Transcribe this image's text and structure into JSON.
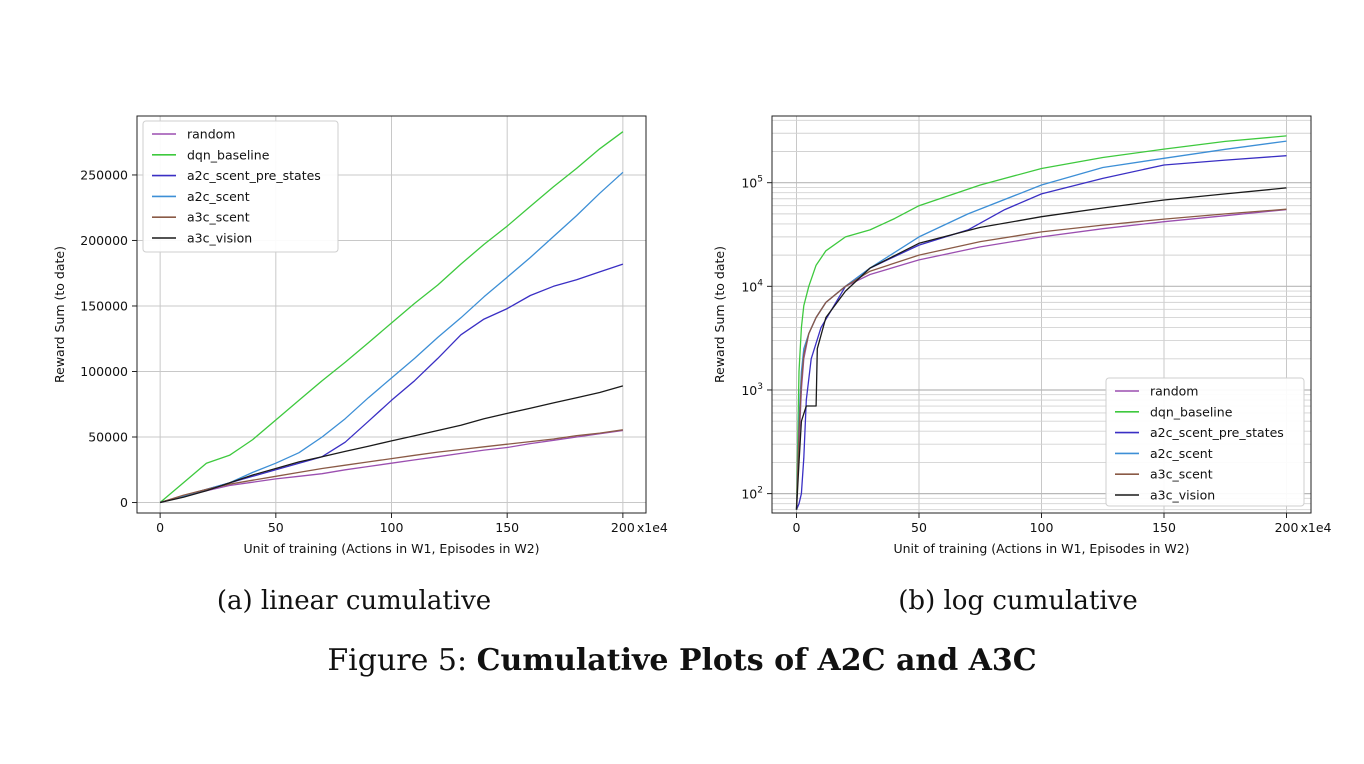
{
  "figure": {
    "label": "Figure 5:",
    "title": "Cumulative Plots of A2C and A3C"
  },
  "chart_data": [
    {
      "type": "line",
      "subcaption": "(a) linear cumulative",
      "xlabel": "Unit of training (Actions in W1, Episodes in W2)",
      "ylabel": "Reward Sum (to date)",
      "x_ticks": [
        0,
        50,
        100,
        150,
        200
      ],
      "x_offset_label": "x1e4",
      "xlim": [
        -10,
        210
      ],
      "ylim": [
        -8000,
        295000
      ],
      "y_ticks": [
        0,
        50000,
        100000,
        150000,
        200000,
        250000
      ],
      "y_tick_labels": [
        "0",
        "50000",
        "100000",
        "150000",
        "200000",
        "250000"
      ],
      "y_scale": "linear",
      "grid": true,
      "legend": "top-left",
      "series": [
        {
          "name": "random",
          "color": "#9b4fb0",
          "x": [
            0,
            10,
            20,
            30,
            40,
            50,
            60,
            70,
            80,
            90,
            100,
            110,
            120,
            130,
            140,
            150,
            160,
            170,
            180,
            190,
            200
          ],
          "y": [
            0,
            5000,
            9000,
            13000,
            15500,
            18000,
            20000,
            22000,
            25000,
            27500,
            30000,
            32500,
            35000,
            37500,
            40000,
            42000,
            45000,
            47500,
            50000,
            52500,
            55000
          ]
        },
        {
          "name": "dqn_baseline",
          "color": "#3ec93e",
          "x": [
            0,
            10,
            20,
            30,
            35,
            40,
            50,
            60,
            70,
            80,
            90,
            100,
            110,
            120,
            130,
            140,
            150,
            160,
            170,
            180,
            190,
            200
          ],
          "y": [
            0,
            15000,
            30000,
            36000,
            42000,
            48000,
            63000,
            78000,
            93000,
            107000,
            122000,
            137000,
            152000,
            166000,
            182000,
            197000,
            211000,
            226000,
            241000,
            255000,
            270000,
            283000
          ]
        },
        {
          "name": "a2c_scent_pre_states",
          "color": "#3a2fc4",
          "x": [
            0,
            10,
            20,
            30,
            40,
            50,
            60,
            70,
            80,
            90,
            100,
            110,
            120,
            130,
            140,
            150,
            160,
            170,
            180,
            190,
            200
          ],
          "y": [
            0,
            5000,
            10000,
            15000,
            20000,
            25000,
            30000,
            35000,
            46000,
            62000,
            78000,
            93000,
            110000,
            128000,
            140000,
            148000,
            158000,
            165000,
            170000,
            176000,
            182000
          ]
        },
        {
          "name": "a2c_scent",
          "color": "#3d8fd6",
          "x": [
            0,
            10,
            20,
            30,
            40,
            50,
            60,
            70,
            80,
            90,
            100,
            110,
            120,
            130,
            140,
            150,
            160,
            170,
            180,
            190,
            200
          ],
          "y": [
            0,
            5000,
            10000,
            15000,
            23000,
            30000,
            38000,
            50000,
            64000,
            80000,
            95000,
            110000,
            126000,
            141000,
            157000,
            172000,
            187000,
            203000,
            219000,
            236000,
            252000
          ]
        },
        {
          "name": "a3c_scent",
          "color": "#8a5a46",
          "x": [
            0,
            10,
            20,
            30,
            40,
            50,
            60,
            70,
            80,
            90,
            100,
            110,
            120,
            130,
            140,
            150,
            160,
            170,
            180,
            190,
            200
          ],
          "y": [
            0,
            5500,
            10000,
            14000,
            17000,
            20000,
            23000,
            26000,
            28500,
            31000,
            33500,
            36000,
            38500,
            40500,
            42500,
            44500,
            46500,
            48500,
            51000,
            53000,
            55500
          ]
        },
        {
          "name": "a3c_vision",
          "color": "#1a1a1a",
          "x": [
            0,
            10,
            20,
            30,
            40,
            50,
            60,
            70,
            80,
            90,
            100,
            110,
            120,
            130,
            140,
            150,
            160,
            170,
            180,
            190,
            200
          ],
          "y": [
            0,
            4000,
            9000,
            15000,
            21000,
            26000,
            31000,
            35000,
            39000,
            43000,
            47000,
            51000,
            55000,
            59000,
            64000,
            68000,
            72000,
            76000,
            80000,
            84000,
            89000
          ]
        }
      ]
    },
    {
      "type": "line",
      "subcaption": "(b) log cumulative",
      "xlabel": "Unit of training (Actions in W1, Episodes in W2)",
      "ylabel": "Reward Sum (to date)",
      "x_ticks": [
        0,
        50,
        100,
        150,
        200
      ],
      "x_offset_label": "x1e4",
      "xlim": [
        -10,
        210
      ],
      "ylim": [
        65,
        440000
      ],
      "y_ticks": [
        100,
        1000,
        10000,
        100000
      ],
      "y_tick_base": "10",
      "y_tick_exponents": [
        "2",
        "3",
        "4",
        "5"
      ],
      "y_scale": "log",
      "grid": true,
      "legend": "bottom-right",
      "series": [
        {
          "name": "random",
          "color": "#9b4fb0",
          "x": [
            0,
            1,
            2,
            3,
            5,
            8,
            12,
            20,
            30,
            50,
            75,
            100,
            125,
            150,
            175,
            200
          ],
          "y": [
            70,
            300,
            1000,
            2000,
            3500,
            5000,
            7000,
            10000,
            13000,
            18000,
            24000,
            30000,
            36000,
            42000,
            48000,
            55000
          ]
        },
        {
          "name": "dqn_baseline",
          "color": "#3ec93e",
          "x": [
            0,
            1,
            2,
            3,
            5,
            8,
            12,
            20,
            30,
            40,
            50,
            75,
            100,
            125,
            150,
            175,
            200
          ],
          "y": [
            70,
            1500,
            4000,
            6500,
            10000,
            16000,
            22000,
            30000,
            35000,
            45000,
            60000,
            95000,
            137000,
            175000,
            211000,
            250000,
            283000
          ]
        },
        {
          "name": "a2c_scent_pre_states",
          "color": "#3a2fc4",
          "x": [
            0,
            1,
            2,
            3,
            4,
            6,
            10,
            20,
            30,
            50,
            70,
            85,
            100,
            125,
            150,
            175,
            200
          ],
          "y": [
            70,
            80,
            100,
            220,
            800,
            2000,
            4000,
            10000,
            15000,
            25000,
            35000,
            55000,
            78000,
            110000,
            148000,
            165000,
            182000
          ]
        },
        {
          "name": "a2c_scent",
          "color": "#3d8fd6",
          "x": [
            0,
            1,
            2,
            3,
            5,
            8,
            12,
            20,
            30,
            50,
            70,
            100,
            125,
            150,
            175,
            200
          ],
          "y": [
            70,
            500,
            1500,
            2500,
            3500,
            5000,
            7000,
            10000,
            15000,
            30000,
            50000,
            95000,
            140000,
            172000,
            210000,
            252000
          ]
        },
        {
          "name": "a3c_scent",
          "color": "#8a5a46",
          "x": [
            0,
            1,
            2,
            3,
            5,
            8,
            12,
            20,
            30,
            50,
            75,
            100,
            125,
            150,
            175,
            200
          ],
          "y": [
            70,
            400,
            1200,
            2200,
            3500,
            5000,
            7000,
            10000,
            14000,
            20000,
            27000,
            33500,
            39000,
            44500,
            50000,
            55500
          ]
        },
        {
          "name": "a3c_vision",
          "color": "#1a1a1a",
          "x": [
            0,
            1,
            2,
            4,
            4.5,
            8,
            8.5,
            12,
            20,
            30,
            50,
            75,
            100,
            125,
            150,
            175,
            200
          ],
          "y": [
            70,
            200,
            500,
            700,
            700,
            700,
            2500,
            5000,
            9000,
            15000,
            26000,
            37000,
            47000,
            57000,
            68000,
            78000,
            89000
          ]
        }
      ]
    }
  ]
}
